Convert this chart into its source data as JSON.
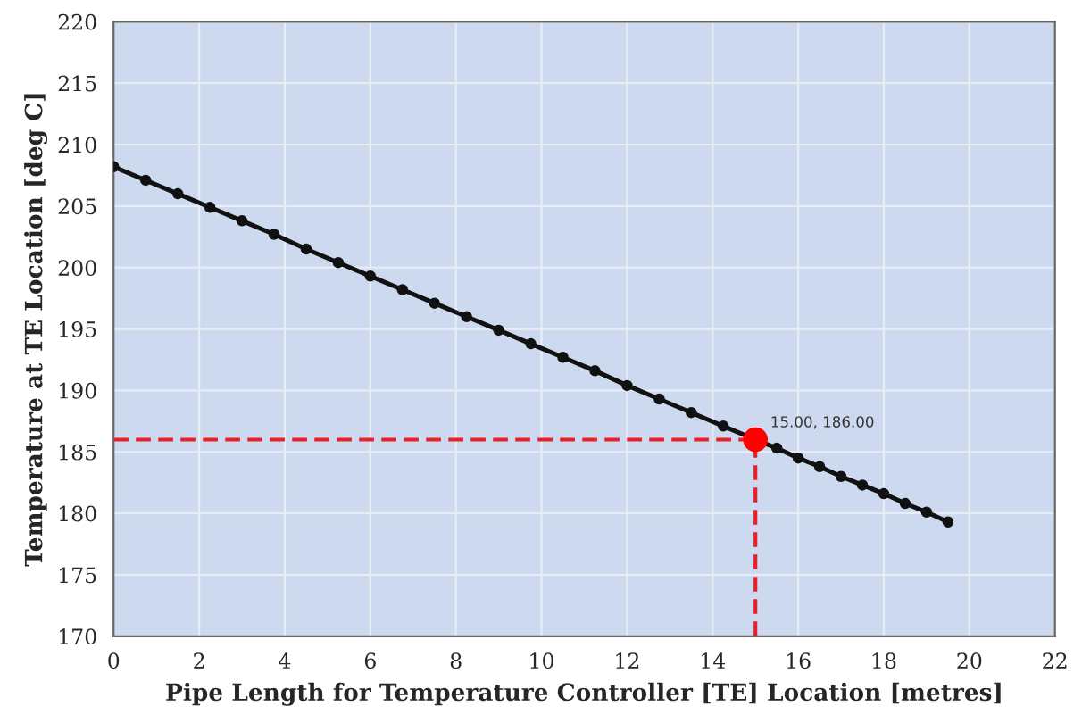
{
  "chart_data": {
    "type": "line",
    "xlabel": "Pipe Length for Temperature Controller [TE] Location [metres]",
    "ylabel": "Temperature at TE Location [deg C]",
    "xlim": [
      0,
      22
    ],
    "xticks": [
      0,
      2,
      4,
      6,
      8,
      10,
      12,
      14,
      16,
      18,
      20,
      22
    ],
    "ylim": [
      170,
      220
    ],
    "yticks": [
      170,
      175,
      180,
      185,
      190,
      195,
      200,
      205,
      210,
      215,
      220
    ],
    "grid": true,
    "series": [
      {
        "color": "#111111",
        "marker": "circle",
        "line_style": "solid",
        "x": [
          0,
          0.75,
          1.5,
          2.25,
          3,
          3.75,
          4.5,
          5.25,
          6,
          6.75,
          7.5,
          8.25,
          9,
          9.75,
          10.5,
          11.25,
          12,
          12.75,
          13.5,
          14.25,
          15,
          15.5,
          16,
          16.5,
          17,
          17.5,
          18,
          18.5,
          19,
          19.5
        ],
        "values": [
          208.2,
          207.1,
          206.0,
          204.9,
          203.8,
          202.7,
          201.5,
          200.4,
          199.3,
          198.2,
          197.1,
          196.0,
          194.9,
          193.8,
          192.7,
          191.6,
          190.4,
          189.3,
          188.2,
          187.1,
          186.0,
          185.3,
          184.5,
          183.8,
          183.0,
          182.3,
          181.6,
          180.8,
          180.1,
          179.3
        ]
      },
      {
        "type": "line",
        "color": "#e8202a",
        "marker": "none",
        "line_style": "dashed",
        "x": [
          0,
          15
        ],
        "values": [
          186,
          186
        ]
      },
      {
        "type": "line",
        "color": "#e8202a",
        "marker": "none",
        "line_style": "dashed",
        "x": [
          15,
          15
        ],
        "values": [
          170,
          186
        ]
      },
      {
        "type": "scatter",
        "color": "#ff0000",
        "marker": "circle",
        "x": [
          15
        ],
        "values": [
          186
        ]
      }
    ],
    "annotations": [
      {
        "text": "15.00, 186.00",
        "x": 15,
        "y": 186
      }
    ]
  }
}
